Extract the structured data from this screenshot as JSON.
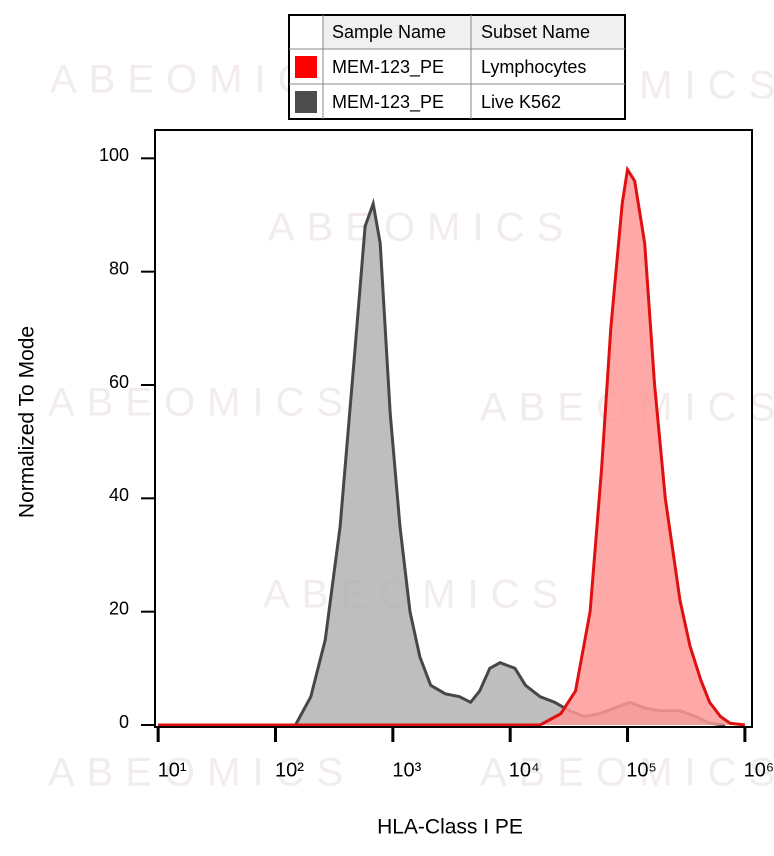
{
  "chart_data": {
    "type": "histogram-overlay",
    "x_label": "HLA-Class I PE",
    "y_label": "Normalized To Mode",
    "watermark": "ABEOMICS",
    "legend_headers": [
      "Sample Name",
      "Subset Name"
    ],
    "xscale": "log",
    "xlim": [
      9.4,
      1150000
    ],
    "ylim": [
      0,
      105
    ],
    "xticks": [
      {
        "value": 10,
        "label": "10¹"
      },
      {
        "value": 100,
        "label": "10²"
      },
      {
        "value": 1000,
        "label": "10³"
      },
      {
        "value": 10000,
        "label": "10⁴"
      },
      {
        "value": 100000,
        "label": "10⁵"
      },
      {
        "value": 1000000,
        "label": "10⁶"
      }
    ],
    "yticks": [
      0,
      20,
      40,
      60,
      80,
      100
    ],
    "series": [
      {
        "name": "Live K562",
        "sample": "MEM-123_PE",
        "color": "#474747",
        "fill": "#b3b3b3",
        "x": [
          10,
          148,
          200,
          265,
          355,
          470,
          580,
          680,
          780,
          950,
          1150,
          1400,
          1700,
          2100,
          2800,
          3700,
          4600,
          5500,
          6700,
          8200,
          11000,
          13500,
          18000,
          24000,
          32000,
          43000,
          58000,
          77000,
          105000,
          140000,
          190000,
          280000,
          380000,
          500000,
          680000
        ],
        "values": [
          0,
          0,
          5,
          15,
          35,
          65,
          88,
          92,
          85,
          55,
          35,
          20,
          12,
          7,
          5.5,
          5,
          4,
          6,
          10,
          11,
          10,
          7,
          5,
          4,
          2.5,
          1.5,
          2,
          3,
          4,
          3,
          2.5,
          2.5,
          1.5,
          0.3,
          0
        ]
      },
      {
        "name": "Lymphocytes",
        "sample": "MEM-123_PE",
        "color": "#e01010",
        "fill": "#ff9999",
        "x": [
          10,
          18000,
          27000,
          36000,
          48000,
          60000,
          72000,
          90000,
          100000,
          115000,
          140000,
          170000,
          210000,
          280000,
          340000,
          420000,
          500000,
          620000,
          750000,
          1000000
        ],
        "values": [
          0,
          0,
          2,
          6,
          20,
          45,
          70,
          92,
          98,
          96,
          85,
          60,
          40,
          22,
          14,
          8,
          4,
          1.5,
          0.3,
          0
        ]
      }
    ]
  }
}
